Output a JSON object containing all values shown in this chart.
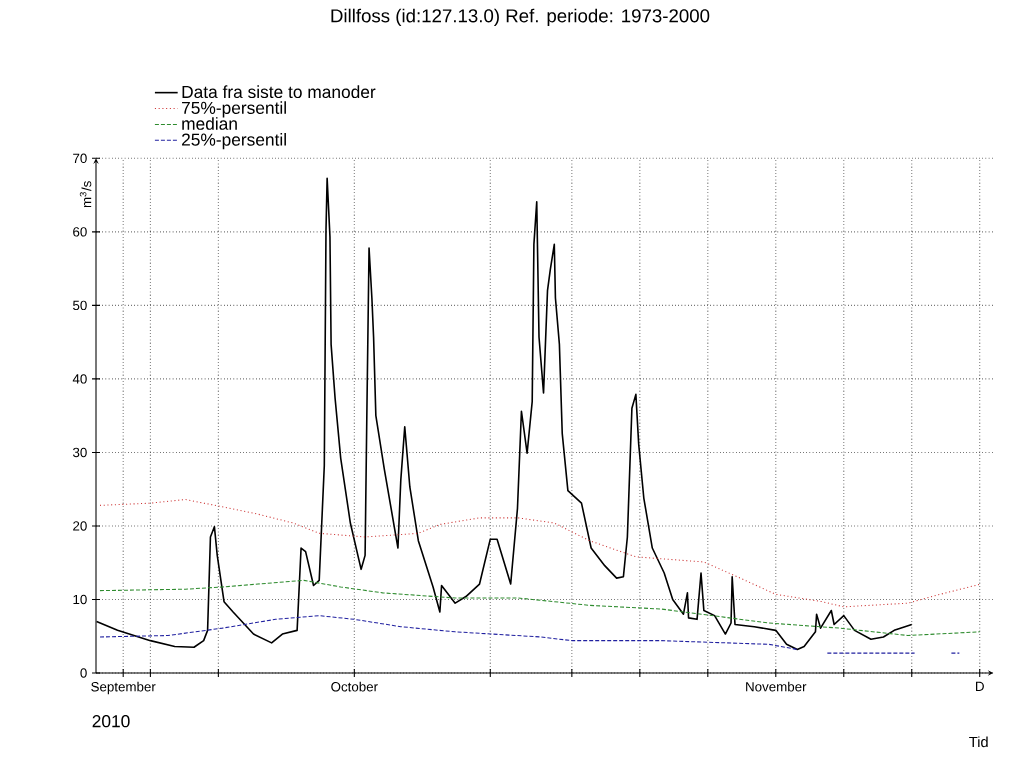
{
  "chart_data": {
    "type": "line",
    "title": "Dillfoss (id:127.13.0) Ref. periode: 1973-2000",
    "xlabel": "Tid",
    "ylabel": "m$^{3}$/s",
    "annotations": [
      "2010"
    ],
    "xlim": [
      "2010-09-27",
      "2010-12-02"
    ],
    "ylim": [
      0,
      70
    ],
    "xticks": [
      {
        "value": "2010-09-29",
        "label": "September"
      },
      {
        "value": "2010-10-01",
        "label": null
      },
      {
        "value": "2010-10-06",
        "label": null
      },
      {
        "value": "2010-10-16",
        "label": "October"
      },
      {
        "value": "2010-10-26",
        "label": null
      },
      {
        "value": "2010-11-01",
        "label": null
      },
      {
        "value": "2010-11-06",
        "label": null
      },
      {
        "value": "2010-11-11",
        "label": null
      },
      {
        "value": "2010-11-16",
        "label": "November"
      },
      {
        "value": "2010-11-21",
        "label": null
      },
      {
        "value": "2010-11-26",
        "label": null
      },
      {
        "value": "2010-12-01",
        "label": "D"
      }
    ],
    "yticks": [
      0,
      10,
      20,
      30,
      40,
      50,
      60,
      70
    ],
    "grid": true,
    "legend": "top left",
    "series": [
      {
        "name": "Data fra siste to manoder",
        "color": "#000000",
        "line_style": "solid",
        "x": [
          "2010-09-27T01:00",
          "2010-09-28T14:00",
          "2010-10-01T00:00",
          "2010-10-02T19:00",
          "2010-10-04T05:00",
          "2010-10-04T22:00",
          "2010-10-05T05:00",
          "2010-10-05T10:00",
          "2010-10-05T17:00",
          "2010-10-05T22:00",
          "2010-10-06T10:00",
          "2010-10-07T02:00",
          "2010-10-08T14:00",
          "2010-10-09T22:00",
          "2010-10-10T17:00",
          "2010-10-11T19:00",
          "2010-10-12T02:00",
          "2010-10-12T10:00",
          "2010-10-13T00:00",
          "2010-10-13T10:00",
          "2010-10-13T19:00",
          "2010-10-13T22:00",
          "2010-10-14T00:00",
          "2010-10-14T05:00",
          "2010-10-14T07:00",
          "2010-10-14T14:00",
          "2010-10-15T00:00",
          "2010-10-15T17:00",
          "2010-10-16T12:00",
          "2010-10-16T19:00",
          "2010-10-16T22:00",
          "2010-10-17T02:00",
          "2010-10-17T07:00",
          "2010-10-17T10:00",
          "2010-10-17T14:00",
          "2010-10-18T05:00",
          "2010-10-19T05:00",
          "2010-10-19T10:00",
          "2010-10-19T17:00",
          "2010-10-20T02:00",
          "2010-10-20T17:00",
          "2010-10-21T19:00",
          "2010-10-22T07:00",
          "2010-10-22T10:00",
          "2010-10-23T10:00",
          "2010-10-24T05:00",
          "2010-10-25T05:00",
          "2010-10-26T00:00",
          "2010-10-26T12:00",
          "2010-10-27T12:00",
          "2010-10-28T00:00",
          "2010-10-28T07:00",
          "2010-10-28T17:00",
          "2010-10-29T02:00",
          "2010-10-29T05:00",
          "2010-10-29T10:00",
          "2010-10-29T14:00",
          "2010-10-29T22:00",
          "2010-10-30T05:00",
          "2010-10-30T10:00",
          "2010-10-30T17:00",
          "2010-10-30T19:00",
          "2010-10-31T02:00",
          "2010-10-31T07:00",
          "2010-10-31T17:00",
          "2010-11-01T17:00",
          "2010-11-02T10:00",
          "2010-11-03T10:00",
          "2010-11-04T07:00",
          "2010-11-04T19:00",
          "2010-11-05T02:00",
          "2010-11-05T10:00",
          "2010-11-05T17:00",
          "2010-11-05T22:00",
          "2010-11-06T07:00",
          "2010-11-06T22:00",
          "2010-11-07T19:00",
          "2010-11-08T10:00",
          "2010-11-09T05:00",
          "2010-11-09T12:00",
          "2010-11-09T14:00",
          "2010-11-10T05:00",
          "2010-11-10T12:00",
          "2010-11-10T17:00",
          "2010-11-11T12:00",
          "2010-11-12T07:00",
          "2010-11-12T17:00",
          "2010-11-12T19:00",
          "2010-11-13T00:00",
          "2010-11-14T10:00",
          "2010-11-16T00:00",
          "2010-11-16T19:00",
          "2010-11-17T14:00",
          "2010-11-18T02:00",
          "2010-11-18T22:00",
          "2010-11-19T00:00",
          "2010-11-19T07:00",
          "2010-11-20T02:00",
          "2010-11-20T07:00",
          "2010-11-21T00:00",
          "2010-11-21T19:00",
          "2010-11-23T00:00",
          "2010-11-23T22:00",
          "2010-11-24T17:00",
          "2010-11-25T12:00",
          "2010-11-26T00:00"
        ],
        "values": [
          7.0,
          5.8,
          4.4,
          3.6,
          3.5,
          4.4,
          5.8,
          18.5,
          19.9,
          16.0,
          9.7,
          8.3,
          5.3,
          4.1,
          5.3,
          5.8,
          17.0,
          16.5,
          11.9,
          12.6,
          28.2,
          60.3,
          67.3,
          59.3,
          44.7,
          37.4,
          29.2,
          20.4,
          14.1,
          16.0,
          34.5,
          57.8,
          51.0,
          45.7,
          35.0,
          27.7,
          17.0,
          26.2,
          33.5,
          25.3,
          18.0,
          11.7,
          8.3,
          11.9,
          9.5,
          10.4,
          12.1,
          18.2,
          18.2,
          12.1,
          22.4,
          35.6,
          29.9,
          36.9,
          58.3,
          64.1,
          45.7,
          38.1,
          52.0,
          54.9,
          58.3,
          51.0,
          44.7,
          32.6,
          24.8,
          23.1,
          17.0,
          14.6,
          12.9,
          13.1,
          18.5,
          36.0,
          37.9,
          31.1,
          23.8,
          17.0,
          13.6,
          10.0,
          8.0,
          10.9,
          7.5,
          7.3,
          13.6,
          8.5,
          7.8,
          5.3,
          6.8,
          13.1,
          6.6,
          6.3,
          5.8,
          3.9,
          3.2,
          3.6,
          5.6,
          8.0,
          6.1,
          8.5,
          6.6,
          7.8,
          5.8,
          4.6,
          4.9,
          5.8,
          6.3,
          6.6
        ]
      },
      {
        "name": "75%-persentil",
        "color": "#cc3333",
        "line_style": "dotted",
        "x": [
          "2010-09-27T07:00",
          "2010-10-01T00:00",
          "2010-10-03T14:00",
          "2010-10-06T07:00",
          "2010-10-08T22:00",
          "2010-10-11T12:00",
          "2010-10-13T10:00",
          "2010-10-16T19:00",
          "2010-10-20T17:00",
          "2010-10-22T07:00",
          "2010-10-25T05:00",
          "2010-10-28T01:00",
          "2010-10-30T17:00",
          "2010-11-02T07:00",
          "2010-11-05T17:00",
          "2010-11-10T17:00",
          "2010-11-12T19:00",
          "2010-11-16T00:00",
          "2010-11-19T10:00",
          "2010-11-21T00:00",
          "2010-11-25T17:00",
          "2010-11-28T02:00",
          "2010-12-01T02:00"
        ],
        "values": [
          22.8,
          23.1,
          23.6,
          22.6,
          21.6,
          20.4,
          19.0,
          18.5,
          19.0,
          20.2,
          21.1,
          21.1,
          20.4,
          18.0,
          15.8,
          15.1,
          13.4,
          10.7,
          9.7,
          9.0,
          9.5,
          10.7,
          12.1
        ]
      },
      {
        "name": "median",
        "color": "#2e8b2e",
        "line_style": "dashed",
        "x": [
          "2010-09-27T07:00",
          "2010-10-03T14:00",
          "2010-10-06T07:00",
          "2010-10-08T22:00",
          "2010-10-12T07:00",
          "2010-10-15T00:00",
          "2010-10-18T02:00",
          "2010-10-23T10:00",
          "2010-10-28T01:00",
          "2010-10-30T17:00",
          "2010-11-02T07:00",
          "2010-11-07T14:00",
          "2010-11-15T12:00",
          "2010-11-20T17:00",
          "2010-11-25T17:00",
          "2010-12-01T00:00"
        ],
        "values": [
          11.2,
          11.4,
          11.7,
          12.1,
          12.6,
          11.7,
          10.9,
          10.2,
          10.2,
          9.7,
          9.2,
          8.7,
          6.8,
          6.1,
          5.1,
          5.6
        ]
      },
      {
        "name": "25%-persentil",
        "color": "#2020a0",
        "line_style": "dashed",
        "x": [
          "2010-09-27T07:00",
          "2010-10-02T07:00",
          "2010-10-06T07:00",
          "2010-10-10T05:00",
          "2010-10-13T10:00",
          "2010-10-16T00:00",
          "2010-10-19T10:00",
          "2010-10-23T10:00",
          "2010-10-29T17:00",
          "2010-11-01T00:00",
          "2010-11-07T14:00",
          "2010-11-15T12:00",
          "2010-11-17T14:00",
          "2010-11-18T12:00",
          "2010-11-19T19:00",
          "2010-11-26T05:00",
          "2010-11-27T00:00",
          "2010-11-28T22:00",
          "2010-11-29T12:00"
        ],
        "values": [
          4.9,
          5.1,
          6.1,
          7.3,
          7.8,
          7.3,
          6.3,
          5.6,
          4.9,
          4.4,
          4.4,
          3.9,
          3.2,
          null,
          2.7,
          2.7,
          null,
          2.7,
          2.7
        ]
      }
    ]
  }
}
